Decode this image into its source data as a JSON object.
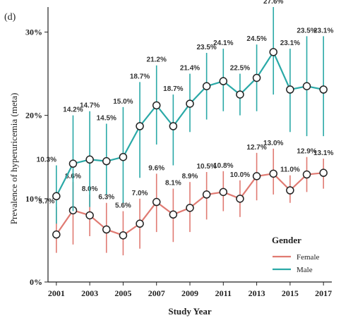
{
  "panel_label": "(d)",
  "colors": {
    "female": "#e07a72",
    "male": "#2aa9a7",
    "axis": "#222222"
  },
  "chart_data": {
    "type": "line",
    "xlabel": "Study Year",
    "ylabel": "Prevalence of hyperuricemia  (meta)",
    "x": [
      2001,
      2002,
      2003,
      2004,
      2005,
      2006,
      2007,
      2008,
      2009,
      2010,
      2011,
      2012,
      2013,
      2014,
      2015,
      2016,
      2017
    ],
    "x_ticks": [
      "2001",
      "2003",
      "2005",
      "2007",
      "2009",
      "2011",
      "2013",
      "2015",
      "2017"
    ],
    "y_ticks": [
      "0%",
      "10%",
      "20%",
      "30%"
    ],
    "ylim": [
      0,
      33
    ],
    "grid": false,
    "legend": {
      "title": "Gender",
      "position": "bottom-right"
    },
    "series": [
      {
        "name": "Female",
        "values": [
          5.7,
          8.6,
          8.0,
          6.3,
          5.6,
          7.0,
          9.6,
          8.1,
          8.9,
          10.5,
          10.8,
          10.0,
          12.7,
          13.0,
          11.0,
          12.9,
          13.1
        ],
        "labels": [
          "5.7%",
          "8.6%",
          "8.0%",
          "6.3%",
          "5.6%",
          "7.0%",
          "9.6%",
          "8.1%",
          "8.9%",
          "10.5%",
          "10.8%",
          "10.0%",
          "12.7%",
          "13.0%",
          "11.0%",
          "12.9%",
          "13.1%"
        ],
        "ci_low": [
          3.5,
          4.5,
          5.5,
          3.5,
          3.2,
          4.0,
          6.0,
          4.8,
          6.0,
          7.5,
          8.5,
          7.8,
          9.8,
          10.5,
          9.5,
          10.8,
          11.2
        ],
        "ci_high": [
          9.0,
          12.0,
          10.5,
          9.5,
          8.5,
          10.0,
          13.0,
          11.2,
          12.0,
          13.2,
          13.3,
          12.2,
          15.5,
          16.0,
          12.8,
          15.0,
          14.8
        ]
      },
      {
        "name": "Male",
        "values": [
          10.3,
          14.2,
          14.7,
          14.5,
          15.0,
          18.7,
          21.2,
          18.7,
          21.4,
          23.5,
          24.1,
          22.5,
          24.5,
          27.6,
          23.1,
          23.5,
          23.1
        ],
        "labels": [
          "10.3%",
          "14.2%",
          "14.7%",
          "14.5%",
          "15.0%",
          "18.7%",
          "21.2%",
          "18.7%",
          "21.4%",
          "23.5%",
          "24.1%",
          "22.5%",
          "24.5%",
          "27.6%",
          "23.1%",
          "23.5%",
          "23.1%"
        ],
        "ci_low": [
          7.0,
          8.5,
          9.0,
          10.5,
          9.5,
          12.5,
          16.5,
          14.0,
          18.0,
          19.5,
          20.5,
          20.0,
          20.5,
          22.5,
          18.0,
          17.5,
          17.5
        ],
        "ci_high": [
          14.0,
          20.0,
          20.5,
          19.0,
          21.0,
          24.0,
          26.0,
          22.5,
          25.0,
          27.5,
          28.0,
          25.0,
          28.5,
          33.0,
          28.0,
          29.5,
          29.5
        ]
      }
    ]
  }
}
